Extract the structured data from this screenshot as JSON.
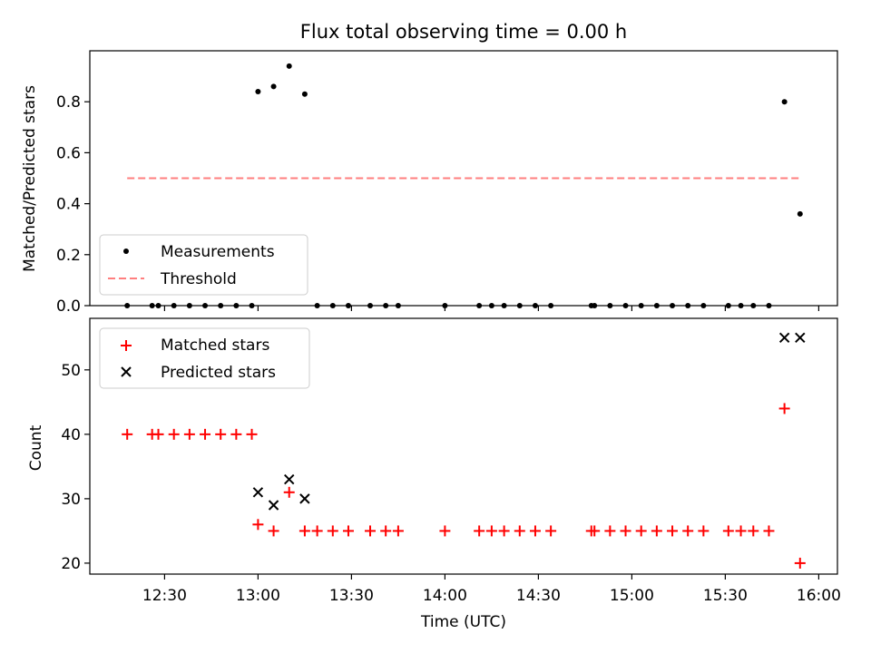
{
  "chart_data": [
    {
      "type": "scatter",
      "title": "Flux total observing time = 0.00 h",
      "xlabel": "",
      "ylabel": "Matched/Predicted stars",
      "ylim": [
        0,
        1.0
      ],
      "yticks": [
        0.0,
        0.2,
        0.4,
        0.6,
        0.8
      ],
      "ytick_labels": [
        "0.0",
        "0.2",
        "0.4",
        "0.6",
        "0.8"
      ],
      "legend_position": "lower-left",
      "series": [
        {
          "name": "Measurements",
          "marker": "dot",
          "color": "#000000",
          "x": [
            "12:18",
            "12:26",
            "12:28",
            "12:33",
            "12:38",
            "12:43",
            "12:48",
            "12:53",
            "12:58",
            "13:00",
            "13:05",
            "13:10",
            "13:15",
            "13:19",
            "13:24",
            "13:29",
            "13:36",
            "13:41",
            "13:45",
            "14:00",
            "14:11",
            "14:15",
            "14:19",
            "14:24",
            "14:29",
            "14:34",
            "14:47",
            "14:48",
            "14:53",
            "14:58",
            "15:03",
            "15:08",
            "15:13",
            "15:18",
            "15:23",
            "15:31",
            "15:35",
            "15:39",
            "15:44",
            "15:49",
            "15:54"
          ],
          "values": [
            0,
            0,
            0,
            0,
            0,
            0,
            0,
            0,
            0,
            0.84,
            0.86,
            0.94,
            0.83,
            0,
            0,
            0,
            0,
            0,
            0,
            0,
            0,
            0,
            0,
            0,
            0,
            0,
            0,
            0,
            0,
            0,
            0,
            0,
            0,
            0,
            0,
            0,
            0,
            0,
            0,
            0.8,
            0.36
          ]
        },
        {
          "name": "Threshold",
          "line": "dashed",
          "color": "#ff7f7f",
          "x": [
            "12:18",
            "15:54"
          ],
          "values": [
            0.5,
            0.5
          ]
        }
      ]
    },
    {
      "type": "scatter",
      "title": "",
      "xlabel": "Time (UTC)",
      "ylabel": "Count",
      "ylim": [
        18.3,
        58.0
      ],
      "yticks": [
        20,
        30,
        40,
        50
      ],
      "ytick_labels": [
        "20",
        "30",
        "40",
        "50"
      ],
      "xlim": [
        "12:06",
        "16:06"
      ],
      "xticks": [
        "12:30",
        "13:00",
        "13:30",
        "14:00",
        "14:30",
        "15:00",
        "15:30",
        "16:00"
      ],
      "legend_position": "upper-left",
      "series": [
        {
          "name": "Matched stars",
          "marker": "plus",
          "color": "#ff0000",
          "x": [
            "12:18",
            "12:26",
            "12:28",
            "12:33",
            "12:38",
            "12:43",
            "12:48",
            "12:53",
            "12:58",
            "13:00",
            "13:05",
            "13:10",
            "13:15",
            "13:19",
            "13:24",
            "13:29",
            "13:36",
            "13:41",
            "13:45",
            "14:00",
            "14:11",
            "14:15",
            "14:19",
            "14:24",
            "14:29",
            "14:34",
            "14:47",
            "14:48",
            "14:53",
            "14:58",
            "15:03",
            "15:08",
            "15:13",
            "15:18",
            "15:23",
            "15:31",
            "15:35",
            "15:39",
            "15:44",
            "15:49",
            "15:54"
          ],
          "values": [
            40,
            40,
            40,
            40,
            40,
            40,
            40,
            40,
            40,
            26,
            25,
            31,
            25,
            25,
            25,
            25,
            25,
            25,
            25,
            25,
            25,
            25,
            25,
            25,
            25,
            25,
            25,
            25,
            25,
            25,
            25,
            25,
            25,
            25,
            25,
            25,
            25,
            25,
            25,
            44,
            20
          ]
        },
        {
          "name": "Predicted stars",
          "marker": "x",
          "color": "#000000",
          "x": [
            "13:00",
            "13:05",
            "13:10",
            "13:15",
            "15:49",
            "15:54"
          ],
          "values": [
            31,
            29,
            33,
            30,
            55,
            55
          ]
        }
      ]
    }
  ]
}
